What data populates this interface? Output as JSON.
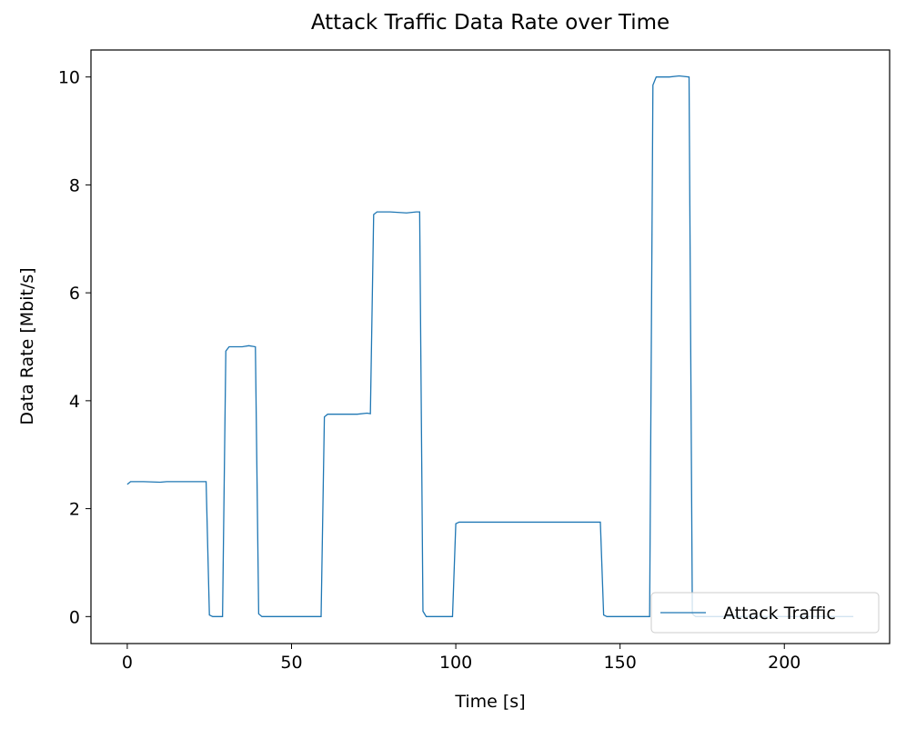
{
  "chart_data": {
    "type": "line",
    "title": "Attack Traffic Data Rate over Time",
    "xlabel": "Time [s]",
    "ylabel": "Data Rate [Mbit/s]",
    "x": [
      0,
      1,
      5,
      10,
      12,
      15,
      20,
      24,
      25,
      26,
      29,
      30,
      31,
      35,
      37,
      39,
      40,
      41,
      59,
      60,
      61,
      65,
      70,
      73,
      74,
      75,
      76,
      80,
      85,
      88,
      89,
      90,
      91,
      99,
      100,
      101,
      110,
      120,
      130,
      140,
      144,
      145,
      146,
      159,
      160,
      161,
      165,
      168,
      171,
      172,
      173,
      221
    ],
    "series": [
      {
        "name": "Attack Traffic",
        "color": "#1f77b4",
        "values": [
          2.45,
          2.5,
          2.5,
          2.49,
          2.5,
          2.5,
          2.5,
          2.5,
          0.03,
          0,
          0,
          4.92,
          5.0,
          5.0,
          5.02,
          5.0,
          0.05,
          0,
          0,
          3.7,
          3.75,
          3.75,
          3.75,
          3.77,
          3.76,
          7.45,
          7.5,
          7.5,
          7.48,
          7.5,
          7.5,
          0.1,
          0,
          0,
          1.72,
          1.75,
          1.75,
          1.75,
          1.75,
          1.75,
          1.75,
          0.03,
          0,
          0,
          9.85,
          10.0,
          10.0,
          10.02,
          10.0,
          0.05,
          0,
          0
        ]
      }
    ],
    "xlim": [
      -11.05,
      232.05
    ],
    "ylim": [
      -0.5,
      10.5
    ],
    "xticks": [
      0,
      50,
      100,
      150,
      200
    ],
    "yticks": [
      0,
      2,
      4,
      6,
      8,
      10
    ],
    "legend": "lower right"
  }
}
